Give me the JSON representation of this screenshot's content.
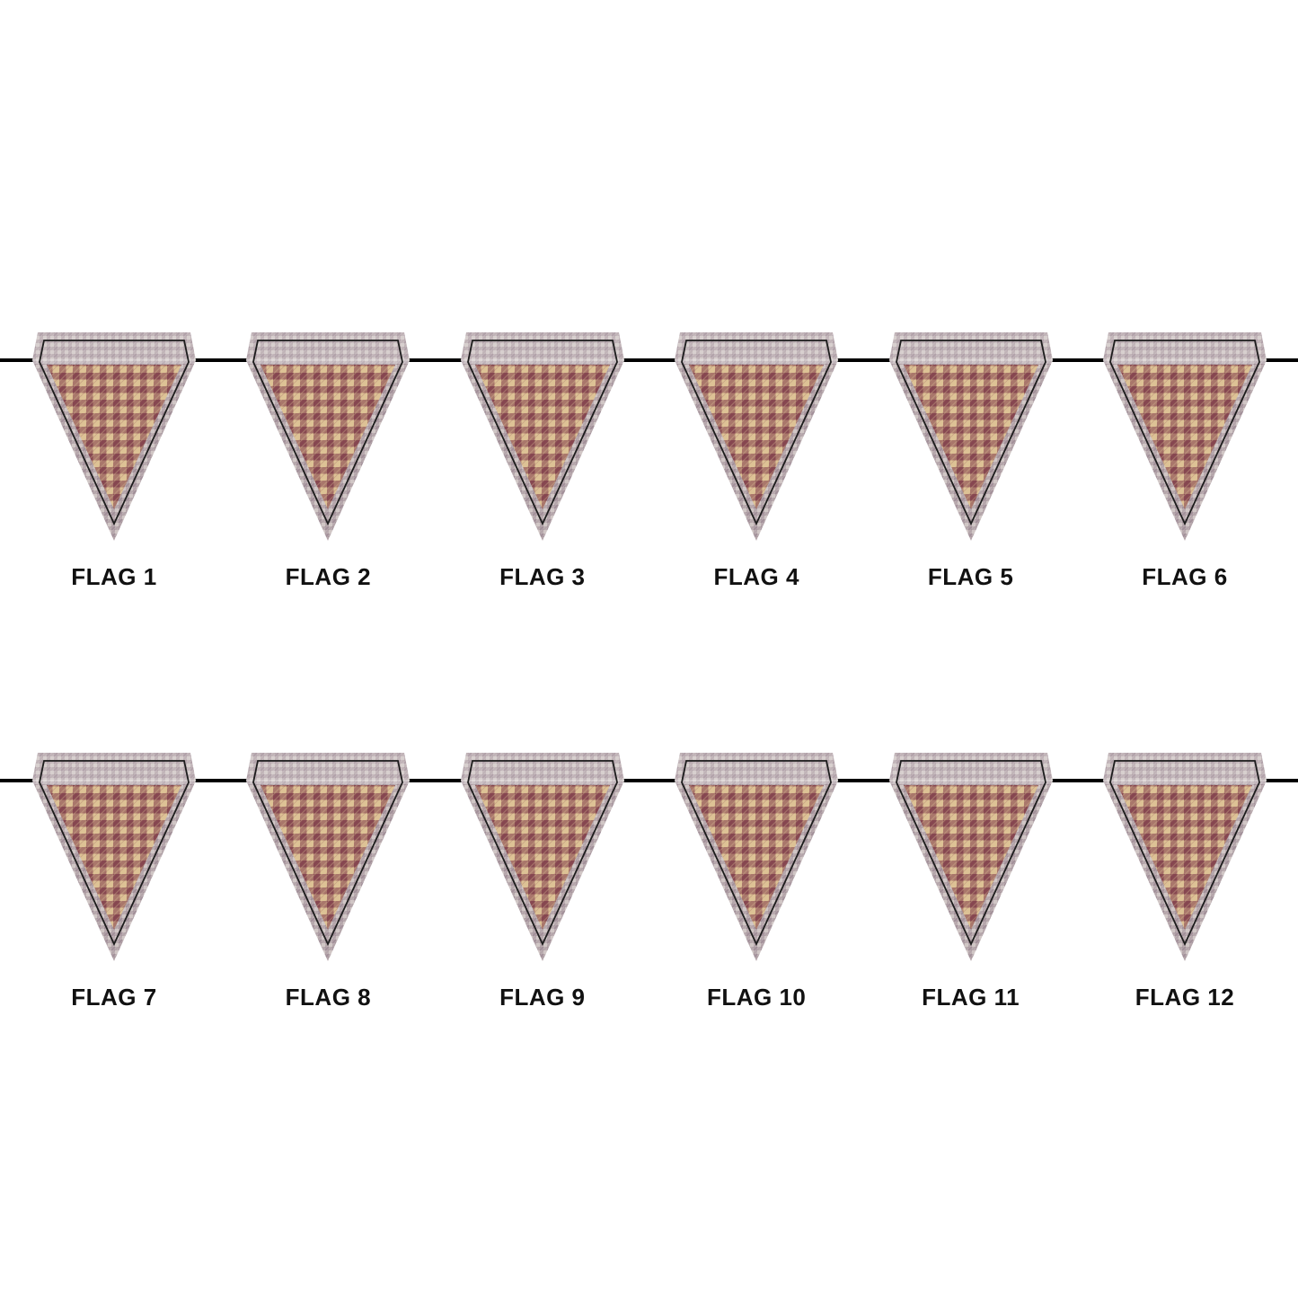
{
  "page": {
    "background": "#ffffff"
  },
  "bunting": {
    "string_color": "#000000",
    "label_color": "#111111",
    "fabric": {
      "check_dark": "#7e3a49",
      "check_light": "#ddc295",
      "border_light": "#d0c6c5",
      "border_dark": "#9c8a93",
      "stitch_outline": "#1c1c1c"
    },
    "rows": [
      {
        "flags": [
          {
            "label": "FLAG 1"
          },
          {
            "label": "FLAG 2"
          },
          {
            "label": "FLAG 3"
          },
          {
            "label": "FLAG 4"
          },
          {
            "label": "FLAG 5"
          },
          {
            "label": "FLAG 6"
          }
        ]
      },
      {
        "flags": [
          {
            "label": "FLAG 7"
          },
          {
            "label": "FLAG 8"
          },
          {
            "label": "FLAG 9"
          },
          {
            "label": "FLAG 10"
          },
          {
            "label": "FLAG 11"
          },
          {
            "label": "FLAG 12"
          }
        ]
      }
    ]
  }
}
